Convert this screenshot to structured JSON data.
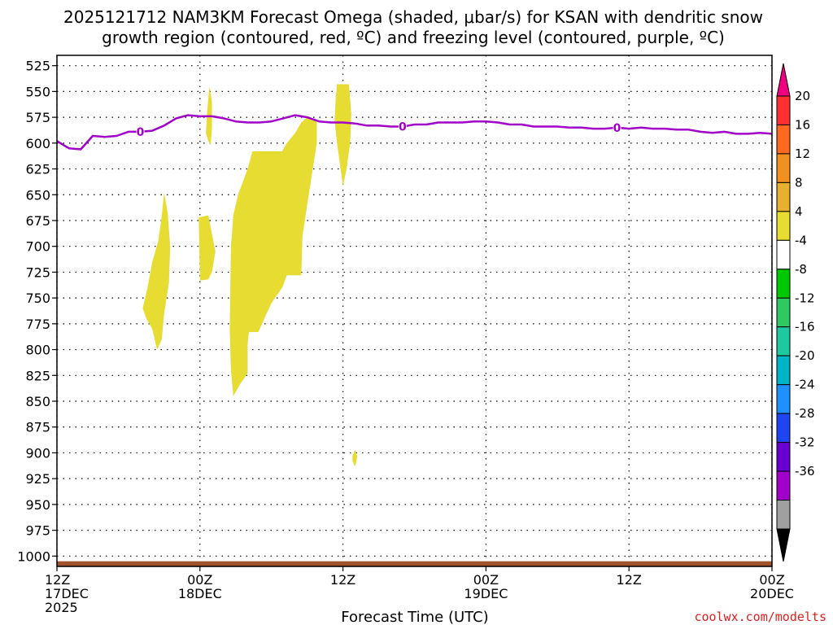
{
  "chart_data": {
    "type": "heatmap",
    "title_line1": "2025121712 NAM3KM Forecast Omega (shaded, μbar/s) for KSAN with dendritic snow",
    "title_line2": "growth region (contoured, red, ºC) and freezing level (contoured, purple, ºC)",
    "xlabel": "Forecast Time (UTC)",
    "credit": "coolwx.com/modelts",
    "x_range_hours": [
      0,
      60
    ],
    "y_range_hpa": [
      515,
      1010
    ],
    "y_ticks": [
      525,
      550,
      575,
      600,
      625,
      650,
      675,
      700,
      725,
      750,
      775,
      800,
      825,
      850,
      875,
      900,
      925,
      950,
      975,
      1000
    ],
    "x_ticks": [
      {
        "hour": 0,
        "line1": "12Z",
        "line2": "17DEC",
        "line3": "2025"
      },
      {
        "hour": 12,
        "line1": "00Z",
        "line2": "18DEC",
        "line3": ""
      },
      {
        "hour": 24,
        "line1": "12Z",
        "line2": "",
        "line3": ""
      },
      {
        "hour": 36,
        "line1": "00Z",
        "line2": "19DEC",
        "line3": ""
      },
      {
        "hour": 48,
        "line1": "12Z",
        "line2": "",
        "line3": ""
      },
      {
        "hour": 60,
        "line1": "00Z",
        "line2": "20DEC",
        "line3": ""
      }
    ],
    "omega_regions": [
      {
        "value_range": "4 to 8",
        "points": [
          [
            7.2,
            760
          ],
          [
            7.6,
            740
          ],
          [
            8.0,
            715
          ],
          [
            8.5,
            695
          ],
          [
            8.8,
            670
          ],
          [
            9.0,
            648
          ],
          [
            9.3,
            668
          ],
          [
            9.5,
            700
          ],
          [
            9.4,
            735
          ],
          [
            9.0,
            765
          ],
          [
            8.8,
            790
          ],
          [
            8.4,
            800
          ],
          [
            8.0,
            780
          ],
          [
            7.5,
            770
          ]
        ]
      },
      {
        "value_range": "4 to 8",
        "points": [
          [
            12.5,
            590
          ],
          [
            12.6,
            570
          ],
          [
            12.8,
            545
          ],
          [
            13.0,
            560
          ],
          [
            13.0,
            585
          ],
          [
            12.9,
            602
          ],
          [
            12.7,
            598
          ]
        ]
      },
      {
        "value_range": "4 to 8",
        "points": [
          [
            11.9,
            672
          ],
          [
            12.7,
            670
          ],
          [
            13.0,
            688
          ],
          [
            13.3,
            705
          ],
          [
            13.0,
            725
          ],
          [
            12.7,
            732
          ],
          [
            12.0,
            733
          ]
        ]
      },
      {
        "value_range": "4 to 8",
        "points": [
          [
            14.8,
            845
          ],
          [
            14.6,
            820
          ],
          [
            14.5,
            780
          ],
          [
            14.6,
            700
          ],
          [
            14.8,
            670
          ],
          [
            15.2,
            650
          ],
          [
            16.0,
            625
          ],
          [
            16.4,
            608
          ],
          [
            18.9,
            608
          ],
          [
            19.3,
            600
          ],
          [
            20.0,
            590
          ],
          [
            20.5,
            580
          ],
          [
            21.0,
            575
          ],
          [
            21.8,
            577
          ],
          [
            21.8,
            600
          ],
          [
            21.4,
            630
          ],
          [
            21.0,
            660
          ],
          [
            20.6,
            690
          ],
          [
            20.5,
            728
          ],
          [
            19.3,
            728
          ],
          [
            18.9,
            740
          ],
          [
            18.0,
            755
          ],
          [
            17.4,
            770
          ],
          [
            16.9,
            783
          ],
          [
            16.1,
            783
          ],
          [
            16.0,
            795
          ],
          [
            16.0,
            823
          ],
          [
            15.4,
            833
          ]
        ]
      },
      {
        "value_range": "4 to 8",
        "points": [
          [
            23.3,
            578
          ],
          [
            23.4,
            555
          ],
          [
            23.5,
            543
          ],
          [
            24.5,
            543
          ],
          [
            24.7,
            572
          ],
          [
            24.6,
            600
          ],
          [
            24.3,
            625
          ],
          [
            24.0,
            642
          ],
          [
            23.8,
            625
          ],
          [
            23.5,
            600
          ]
        ]
      },
      {
        "value_range": "4 to 8",
        "points": [
          [
            24.8,
            903
          ],
          [
            25.0,
            897
          ],
          [
            25.2,
            903
          ],
          [
            25.1,
            910
          ],
          [
            25.0,
            913
          ],
          [
            24.8,
            908
          ]
        ]
      }
    ],
    "freezing_level": {
      "color": "#a000c8",
      "contour_label": "0",
      "label_hours": [
        7,
        29,
        47
      ],
      "points": [
        [
          0,
          598
        ],
        [
          1,
          605
        ],
        [
          2,
          606
        ],
        [
          3,
          593
        ],
        [
          4,
          594
        ],
        [
          5,
          593
        ],
        [
          6,
          589
        ],
        [
          7,
          589
        ],
        [
          8,
          588
        ],
        [
          9,
          583
        ],
        [
          10,
          576
        ],
        [
          11,
          573
        ],
        [
          12,
          574
        ],
        [
          13,
          574
        ],
        [
          14,
          576
        ],
        [
          15,
          579
        ],
        [
          16,
          580
        ],
        [
          17,
          580
        ],
        [
          18,
          579
        ],
        [
          19,
          576
        ],
        [
          20,
          573
        ],
        [
          21,
          575
        ],
        [
          22,
          579
        ],
        [
          23,
          580
        ],
        [
          24,
          580
        ],
        [
          25,
          581
        ],
        [
          26,
          583
        ],
        [
          27,
          583
        ],
        [
          28,
          584
        ],
        [
          29,
          584
        ],
        [
          30,
          582
        ],
        [
          31,
          582
        ],
        [
          32,
          580
        ],
        [
          33,
          580
        ],
        [
          34,
          580
        ],
        [
          35,
          579
        ],
        [
          36,
          579
        ],
        [
          37,
          580
        ],
        [
          38,
          582
        ],
        [
          39,
          582
        ],
        [
          40,
          584
        ],
        [
          41,
          584
        ],
        [
          42,
          584
        ],
        [
          43,
          585
        ],
        [
          44,
          585
        ],
        [
          45,
          586
        ],
        [
          46,
          586
        ],
        [
          47,
          585
        ],
        [
          48,
          586
        ],
        [
          49,
          585
        ],
        [
          50,
          586
        ],
        [
          51,
          586
        ],
        [
          52,
          587
        ],
        [
          53,
          587
        ],
        [
          54,
          589
        ],
        [
          55,
          590
        ],
        [
          56,
          589
        ],
        [
          57,
          591
        ],
        [
          58,
          591
        ],
        [
          59,
          590
        ],
        [
          60,
          591
        ]
      ]
    },
    "terrain": {
      "color": "#a0522d",
      "surface_hpa": 1005
    },
    "colorbar": {
      "labels": [
        "20",
        "16",
        "12",
        "8",
        "4",
        "-4",
        "-8",
        "-12",
        "-16",
        "-20",
        "-24",
        "-28",
        "-32",
        "-36"
      ],
      "colors": [
        "#f00080",
        "#ff3030",
        "#ff6a20",
        "#f09020",
        "#e8b030",
        "#e6dc32",
        "#ffffff",
        "#00c800",
        "#30c860",
        "#20c8a0",
        "#00b4c8",
        "#1e90ff",
        "#1e46f0",
        "#6a00d0",
        "#a000c8",
        "#a0a0a0",
        "#000000"
      ]
    }
  }
}
